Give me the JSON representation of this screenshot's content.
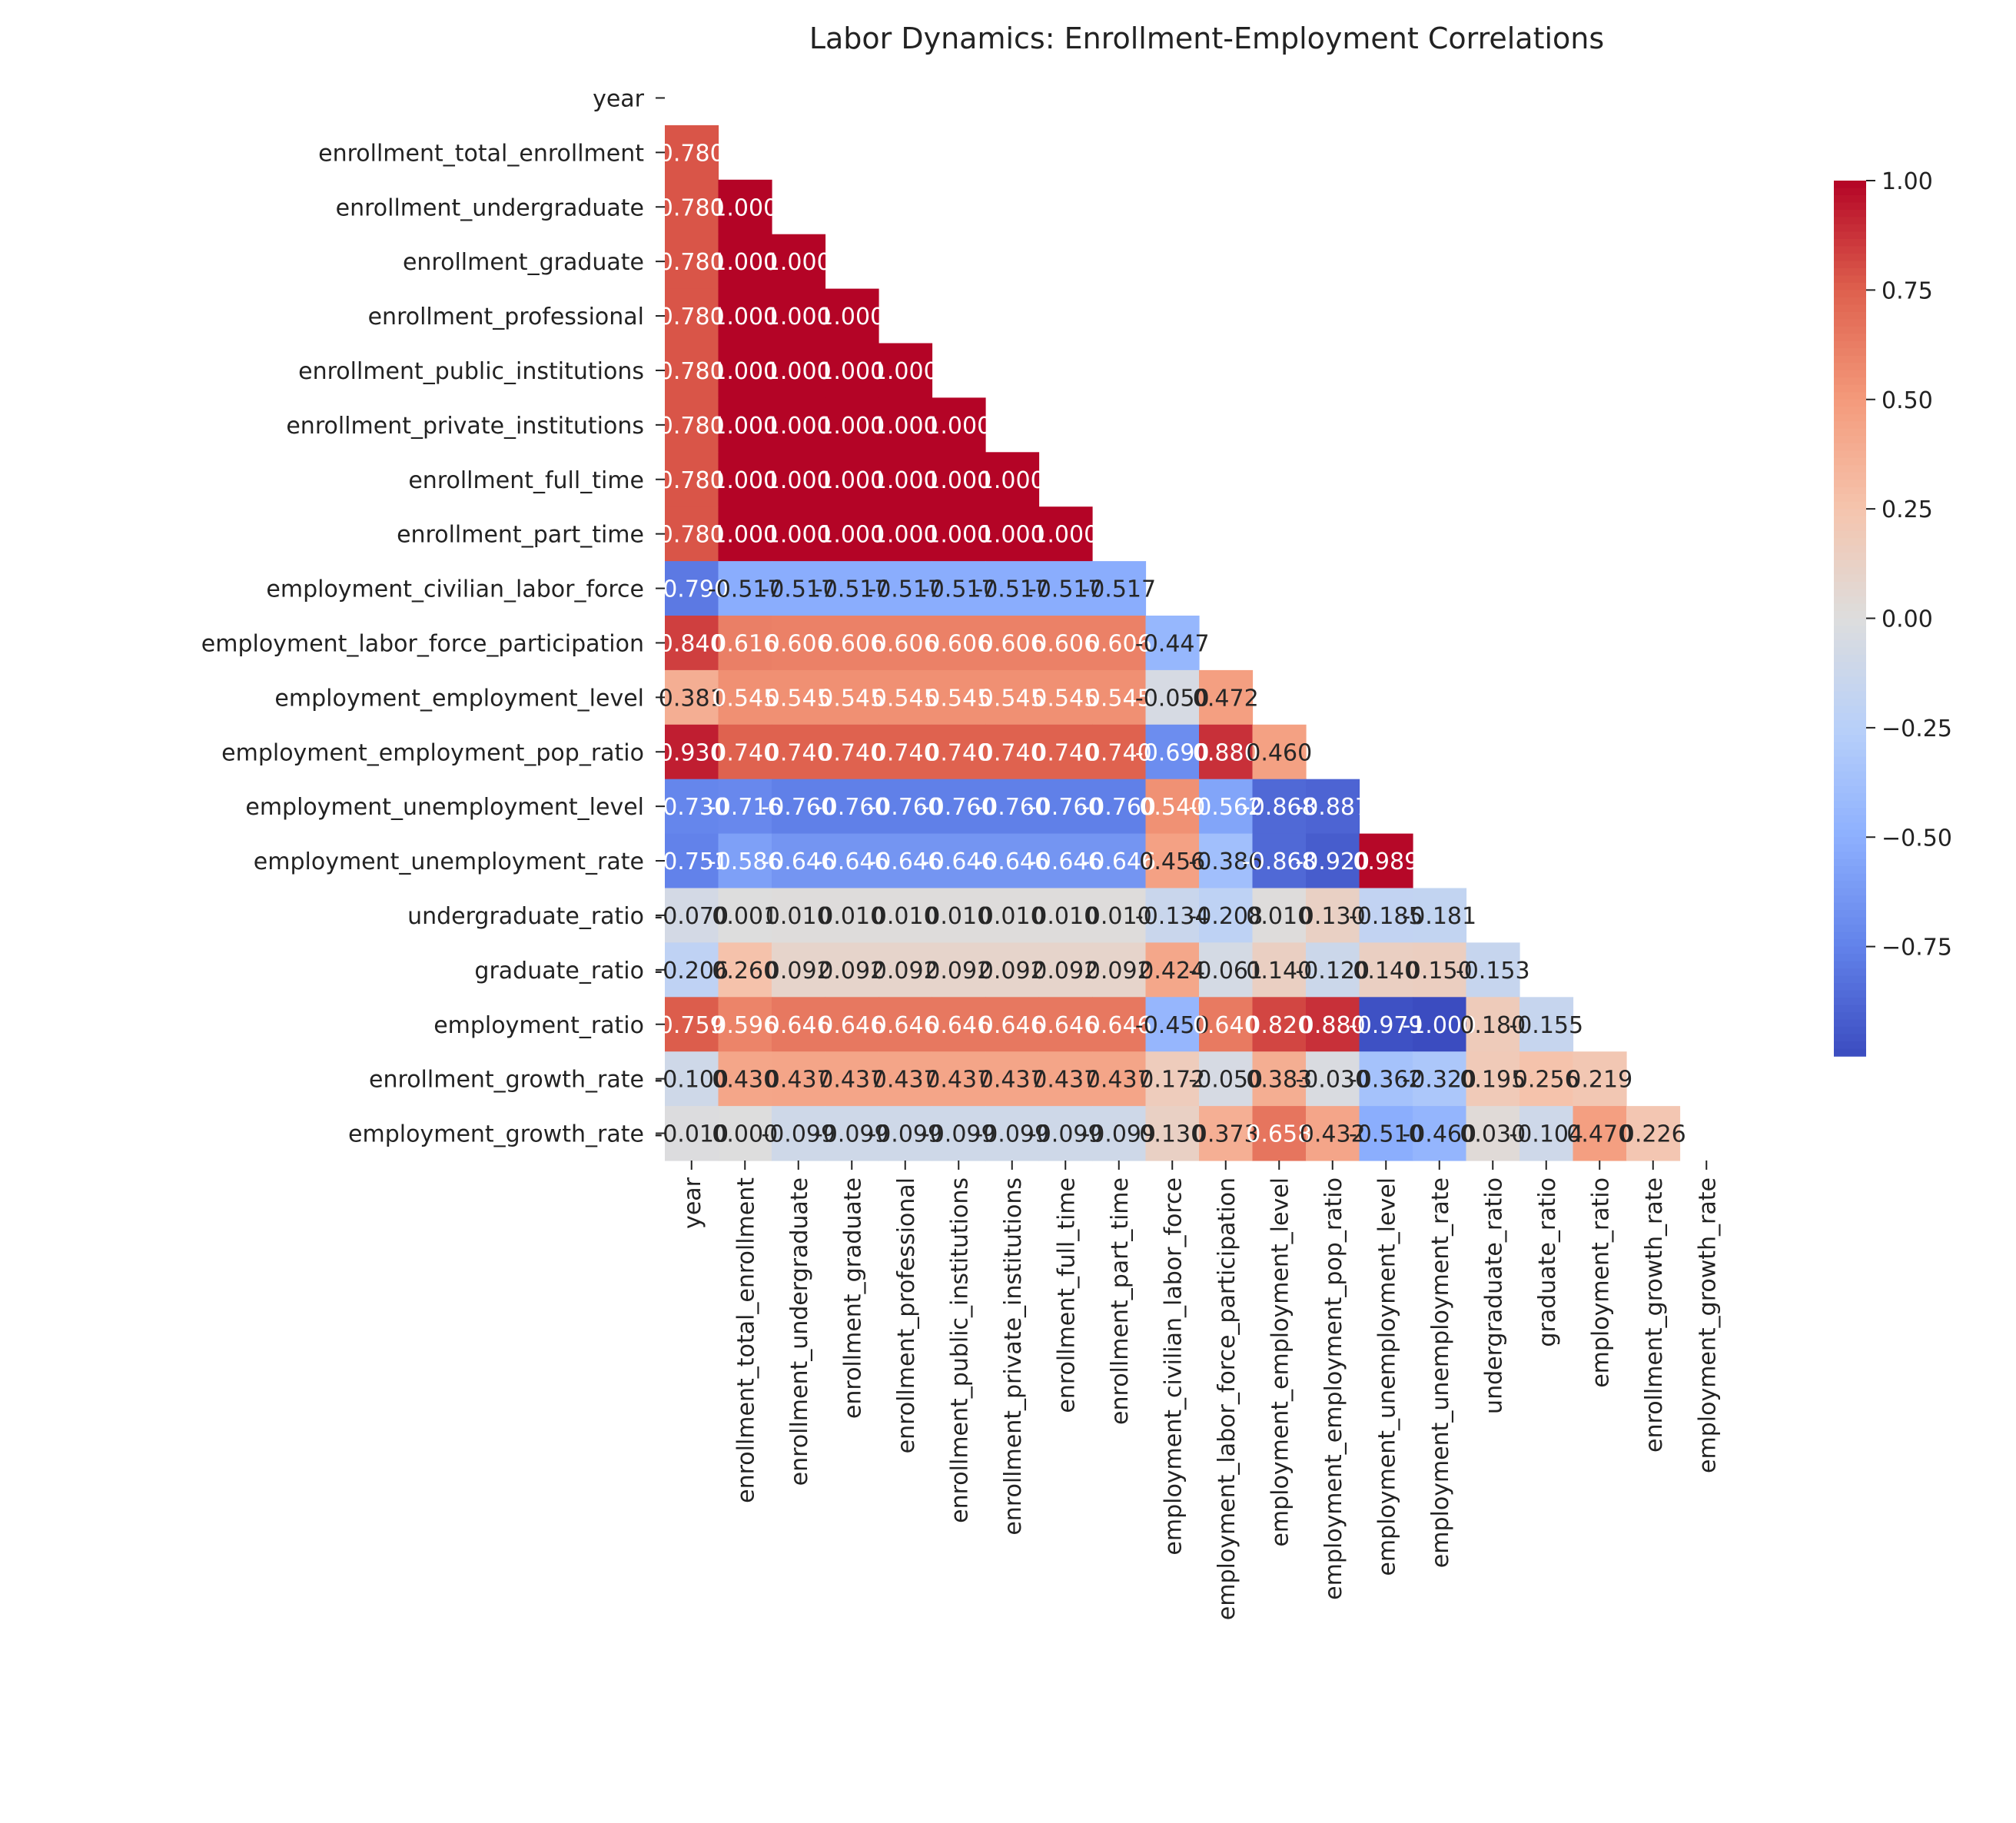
{
  "chart_data": {
    "type": "heatmap",
    "title": "Labor Dynamics: Enrollment-Employment Correlations",
    "mask": "upper-triangle-including-diagonal",
    "colormap": "coolwarm",
    "vmin": -1.0,
    "vmax": 1.0,
    "annotation_format": "3 decimals",
    "labels": [
      "year",
      "enrollment_total_enrollment",
      "enrollment_undergraduate",
      "enrollment_graduate",
      "enrollment_professional",
      "enrollment_public_institutions",
      "enrollment_private_institutions",
      "enrollment_full_time",
      "enrollment_part_time",
      "employment_civilian_labor_force",
      "employment_labor_force_participation",
      "employment_employment_level",
      "employment_employment_pop_ratio",
      "employment_unemployment_level",
      "employment_unemployment_rate",
      "undergraduate_ratio",
      "graduate_ratio",
      "employment_ratio",
      "enrollment_growth_rate",
      "employment_growth_rate"
    ],
    "rows": [
      [],
      [
        0.78
      ],
      [
        0.78,
        1.0
      ],
      [
        0.78,
        1.0,
        1.0
      ],
      [
        0.78,
        1.0,
        1.0,
        1.0
      ],
      [
        0.78,
        1.0,
        1.0,
        1.0,
        1.0
      ],
      [
        0.78,
        1.0,
        1.0,
        1.0,
        1.0,
        1.0
      ],
      [
        0.78,
        1.0,
        1.0,
        1.0,
        1.0,
        1.0,
        1.0
      ],
      [
        0.78,
        1.0,
        1.0,
        1.0,
        1.0,
        1.0,
        1.0,
        1.0
      ],
      [
        -0.79,
        -0.517,
        -0.517,
        -0.517,
        -0.517,
        -0.517,
        -0.517,
        -0.517,
        -0.517
      ],
      [
        0.84,
        0.616,
        0.606,
        0.606,
        0.606,
        0.606,
        0.606,
        0.606,
        0.606,
        -0.447
      ],
      [
        0.381,
        0.545,
        0.545,
        0.545,
        0.545,
        0.545,
        0.545,
        0.545,
        0.545,
        -0.05,
        0.472
      ],
      [
        0.93,
        0.74,
        0.74,
        0.74,
        0.74,
        0.74,
        0.74,
        0.74,
        0.74,
        -0.69,
        0.88,
        0.46
      ],
      [
        -0.73,
        -0.716,
        -0.76,
        -0.76,
        -0.76,
        -0.76,
        -0.76,
        -0.76,
        -0.76,
        0.54,
        -0.562,
        -0.868,
        -0.887
      ],
      [
        -0.751,
        -0.586,
        -0.646,
        -0.646,
        -0.646,
        -0.646,
        -0.646,
        -0.646,
        -0.646,
        0.456,
        -0.386,
        -0.868,
        -0.92,
        0.989
      ],
      [
        -0.07,
        0.001,
        0.01,
        0.01,
        0.01,
        0.01,
        0.01,
        0.01,
        0.01,
        -0.134,
        -0.208,
        0.01,
        0.13,
        -0.185,
        -0.181
      ],
      [
        -0.206,
        0.26,
        0.092,
        0.092,
        0.092,
        0.092,
        0.092,
        0.092,
        0.092,
        0.424,
        -0.061,
        0.14,
        -0.12,
        0.14,
        0.15,
        -0.153
      ],
      [
        0.759,
        0.596,
        0.646,
        0.646,
        0.646,
        0.646,
        0.646,
        0.646,
        0.646,
        -0.45,
        0.64,
        0.82,
        0.88,
        -0.979,
        -1.0,
        0.18,
        -0.155
      ],
      [
        -0.1,
        0.43,
        0.437,
        0.437,
        0.437,
        0.437,
        0.437,
        0.437,
        0.437,
        0.172,
        -0.05,
        0.383,
        -0.03,
        -0.362,
        -0.32,
        0.195,
        0.256,
        0.219
      ],
      [
        -0.01,
        0.0,
        -0.099,
        -0.099,
        -0.099,
        -0.099,
        -0.099,
        -0.099,
        -0.099,
        0.13,
        0.373,
        0.658,
        0.432,
        -0.51,
        -0.46,
        0.03,
        -0.104,
        0.47,
        0.226
      ]
    ],
    "colorbar_ticks": [
      "1.00",
      "0.75",
      "0.50",
      "0.25",
      "0.00",
      "−0.25",
      "−0.50",
      "−0.75"
    ],
    "colorbar_tick_values": [
      1.0,
      0.75,
      0.5,
      0.25,
      0.0,
      -0.25,
      -0.5,
      -0.75
    ]
  }
}
